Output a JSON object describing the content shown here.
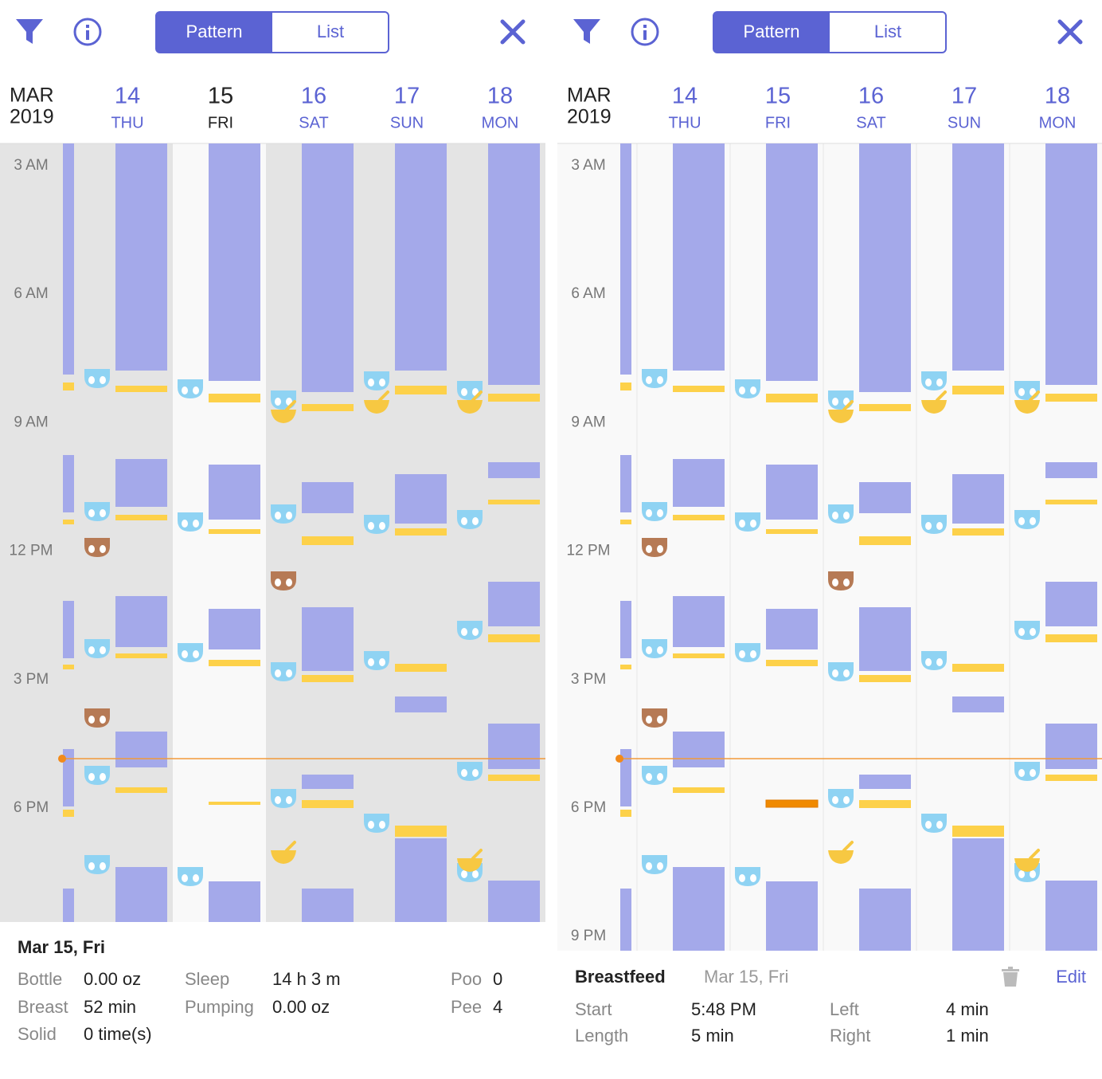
{
  "panels": [
    {
      "tabs": [
        "Pattern",
        "List"
      ],
      "month": "MAR",
      "year": "2019",
      "days": [
        {
          "date": "14",
          "weekday": "THU"
        },
        {
          "date": "15",
          "weekday": "FRI"
        },
        {
          "date": "16",
          "weekday": "SAT"
        },
        {
          "date": "17",
          "weekday": "SUN"
        },
        {
          "date": "18",
          "weekday": "MON"
        }
      ],
      "hours": [
        "3 AM",
        "6 AM",
        "9 AM",
        "12 PM",
        "3 PM",
        "6 PM"
      ],
      "summary": {
        "date": "Mar 15, Fri",
        "stats": [
          {
            "label": "Bottle",
            "value": "0.00 oz"
          },
          {
            "label": "Breast",
            "value": "52 min"
          },
          {
            "label": "Solid",
            "value": "0 time(s)"
          },
          {
            "label": "Sleep",
            "value": "14 h 3 m"
          },
          {
            "label": "Pumping",
            "value": "0.00 oz"
          },
          {
            "label": "Poo",
            "value": "0"
          },
          {
            "label": "Pee",
            "value": "4"
          }
        ]
      }
    },
    {
      "tabs": [
        "Pattern",
        "List"
      ],
      "month": "MAR",
      "year": "2019",
      "days": [
        {
          "date": "14",
          "weekday": "THU"
        },
        {
          "date": "15",
          "weekday": "FRI"
        },
        {
          "date": "16",
          "weekday": "SAT"
        },
        {
          "date": "17",
          "weekday": "SUN"
        },
        {
          "date": "18",
          "weekday": "MON"
        }
      ],
      "hours": [
        "3 AM",
        "6 AM",
        "9 AM",
        "12 PM",
        "3 PM",
        "6 PM",
        "9 PM"
      ],
      "detail": {
        "title": "Breastfeed",
        "date": "Mar 15, Fri",
        "action": "Edit",
        "fields": [
          {
            "label": "Start",
            "value": "5:48 PM"
          },
          {
            "label": "Length",
            "value": "5 min"
          },
          {
            "label": "Left",
            "value": "4 min"
          },
          {
            "label": "Right",
            "value": "1 min"
          }
        ]
      }
    }
  ]
}
